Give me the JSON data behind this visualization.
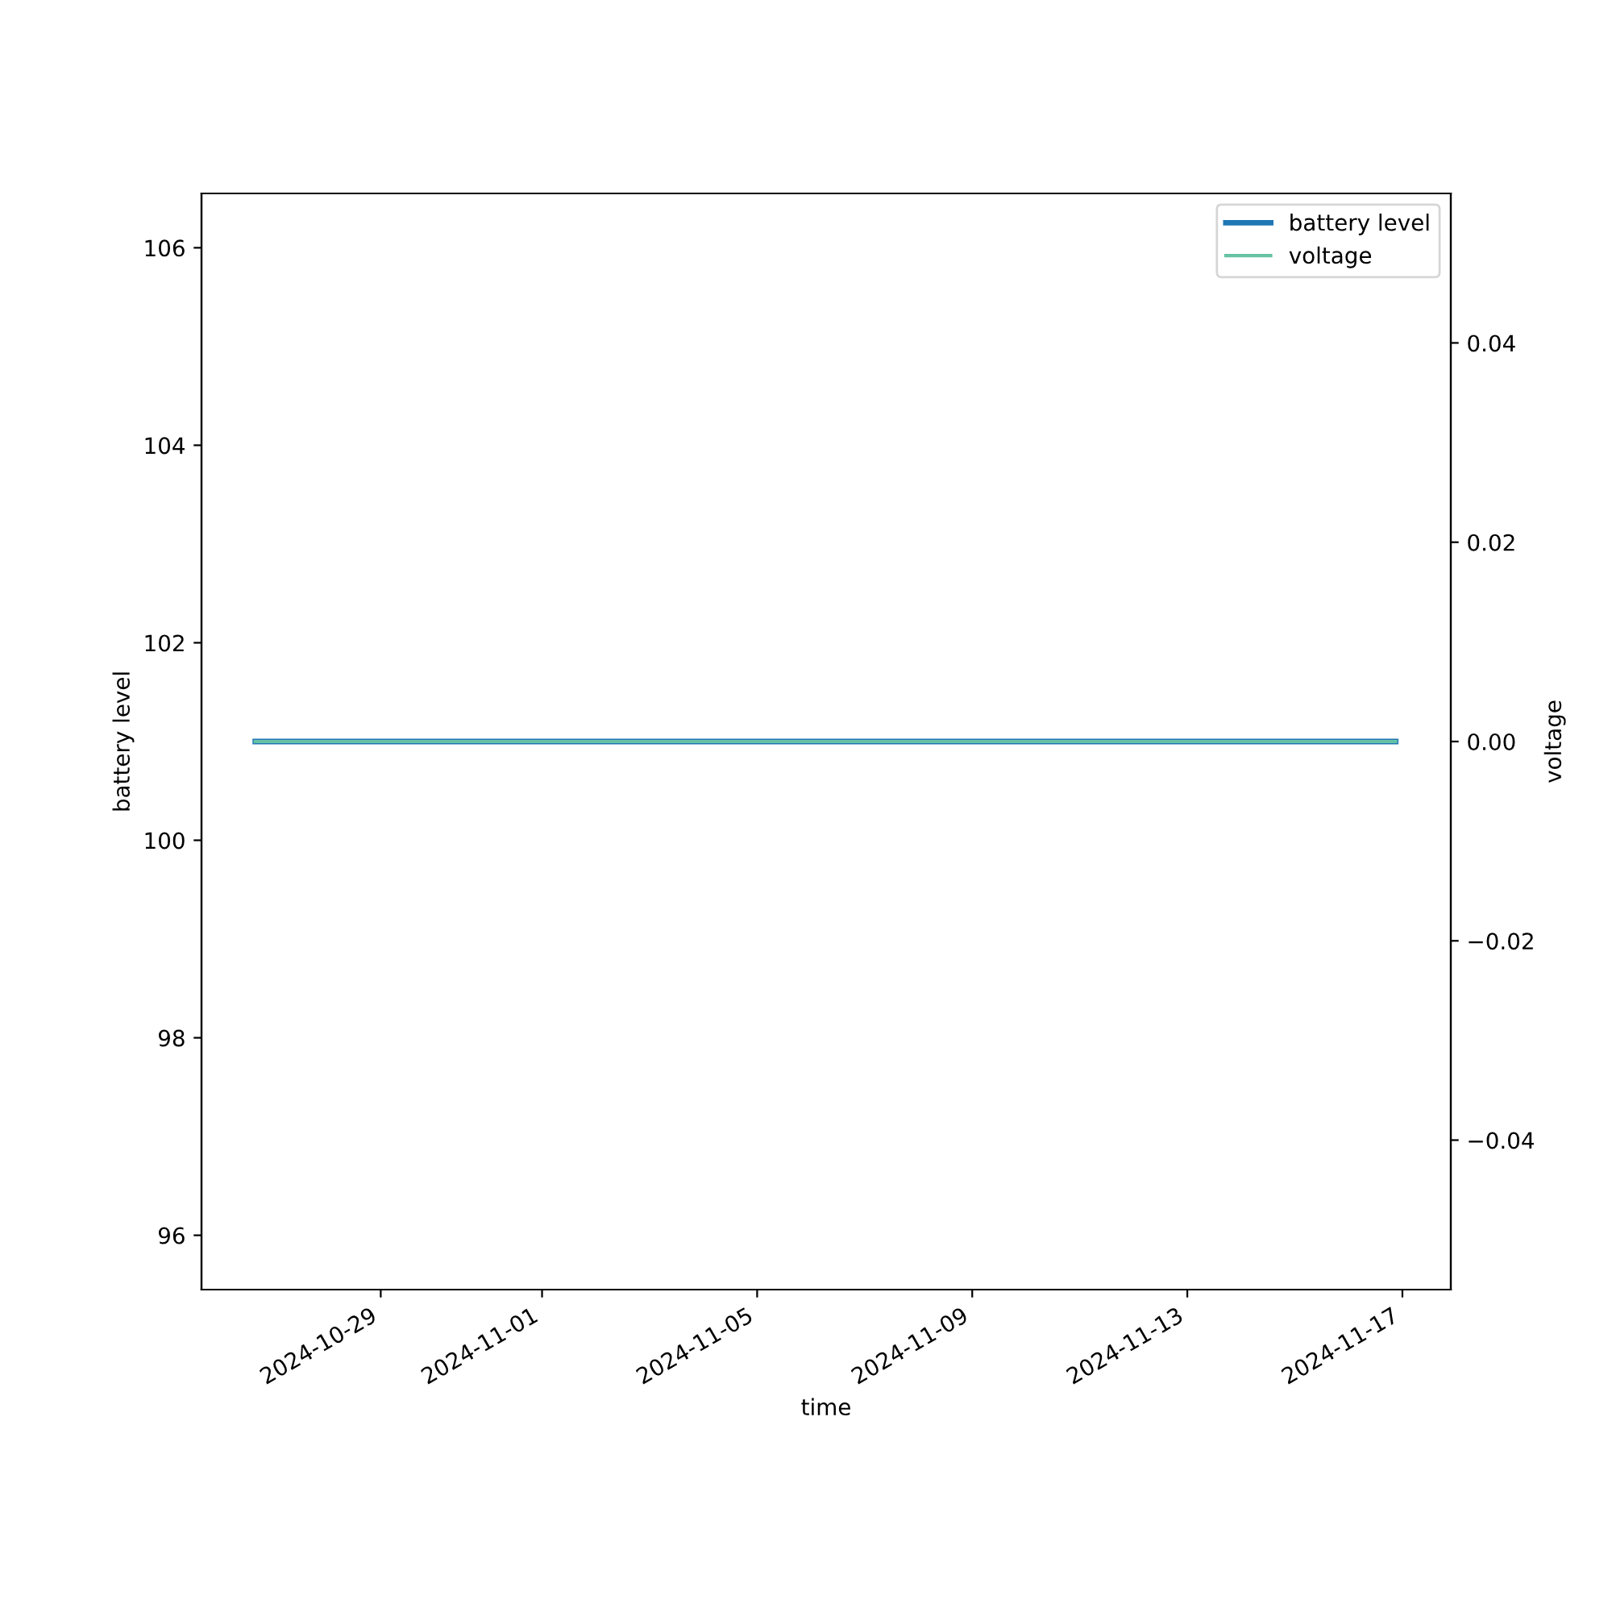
{
  "chart_data": {
    "type": "line",
    "xlabel": "time",
    "ylabel": "battery level",
    "y2label": "voltage",
    "x": [
      "2024-10-26T16:00",
      "2024-11-16T21:00"
    ],
    "series": [
      {
        "name": "battery level",
        "color": "#1f77b4",
        "values": [
          101,
          101
        ]
      },
      {
        "name": "voltage",
        "color": "#66c2a5",
        "values": [
          0,
          0
        ],
        "axis": "y2"
      }
    ],
    "xlim": [
      "2024-10-25T16:00",
      "2024-11-17T21:36"
    ],
    "xticks": [
      "2024-10-29",
      "2024-11-01",
      "2024-11-05",
      "2024-11-09",
      "2024-11-13",
      "2024-11-17"
    ],
    "ylim": [
      95.45,
      106.55
    ],
    "yticks": [
      96,
      98,
      100,
      102,
      104,
      106
    ],
    "y2lim": [
      -0.055,
      0.055
    ],
    "y2ticks": [
      {
        "value": -0.04,
        "label": "−0.04"
      },
      {
        "value": -0.02,
        "label": "−0.02"
      },
      {
        "value": 0,
        "label": "0.00"
      },
      {
        "value": 0.02,
        "label": "0.02"
      },
      {
        "value": 0.04,
        "label": "0.04"
      }
    ],
    "legend": "top right",
    "grid": false
  }
}
